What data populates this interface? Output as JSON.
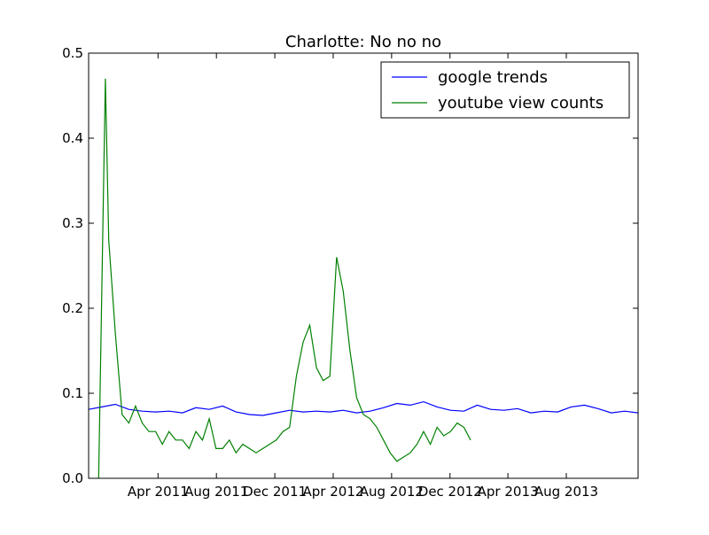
{
  "chart_data": {
    "type": "line",
    "title": "Charlotte: No no no",
    "xlabel": "",
    "ylabel": "",
    "xlim": [
      "2010-11-07",
      "2013-12-29"
    ],
    "ylim": [
      0,
      0.5
    ],
    "yticks": [
      0.0,
      0.1,
      0.2,
      0.3,
      0.4,
      0.5
    ],
    "ytick_labels": [
      "0.0",
      "0.1",
      "0.2",
      "0.3",
      "0.4",
      "0.5"
    ],
    "xticks": [
      "2011-04-01",
      "2011-08-01",
      "2011-12-01",
      "2012-04-01",
      "2012-08-01",
      "2012-12-01",
      "2013-04-01",
      "2013-08-01"
    ],
    "xtick_labels": [
      "Apr 2011",
      "Aug 2011",
      "Dec 2011",
      "Apr 2012",
      "Aug 2012",
      "Dec 2012",
      "Apr 2013",
      "Aug 2013"
    ],
    "grid": false,
    "legend_position": "top-right",
    "series": [
      {
        "name": "google trends",
        "color": "#0000ff",
        "x": [
          "2010-11-07",
          "2010-12-05",
          "2011-01-02",
          "2011-01-30",
          "2011-02-27",
          "2011-03-27",
          "2011-04-24",
          "2011-05-22",
          "2011-06-19",
          "2011-07-17",
          "2011-08-14",
          "2011-09-11",
          "2011-10-09",
          "2011-11-06",
          "2011-12-04",
          "2012-01-01",
          "2012-01-29",
          "2012-02-26",
          "2012-03-25",
          "2012-04-22",
          "2012-05-20",
          "2012-06-17",
          "2012-07-15",
          "2012-08-12",
          "2012-09-09",
          "2012-10-07",
          "2012-11-04",
          "2012-12-02",
          "2012-12-30",
          "2013-01-27",
          "2013-02-24",
          "2013-03-24",
          "2013-04-21",
          "2013-05-19",
          "2013-06-16",
          "2013-07-14",
          "2013-08-11",
          "2013-09-08",
          "2013-10-06",
          "2013-11-03",
          "2013-12-01",
          "2013-12-29"
        ],
        "y": [
          0.081,
          0.084,
          0.087,
          0.081,
          0.079,
          0.078,
          0.079,
          0.077,
          0.083,
          0.081,
          0.085,
          0.078,
          0.075,
          0.074,
          0.077,
          0.08,
          0.078,
          0.079,
          0.078,
          0.08,
          0.077,
          0.079,
          0.083,
          0.088,
          0.086,
          0.09,
          0.084,
          0.08,
          0.079,
          0.086,
          0.081,
          0.08,
          0.082,
          0.077,
          0.079,
          0.078,
          0.084,
          0.086,
          0.082,
          0.077,
          0.079,
          0.077
        ]
      },
      {
        "name": "youtube view counts",
        "color": "#008000",
        "x": [
          "2010-11-28",
          "2010-12-12",
          "2010-12-19",
          "2011-01-02",
          "2011-01-16",
          "2011-01-30",
          "2011-02-13",
          "2011-02-27",
          "2011-03-13",
          "2011-03-27",
          "2011-04-10",
          "2011-04-24",
          "2011-05-08",
          "2011-05-22",
          "2011-06-05",
          "2011-06-19",
          "2011-07-03",
          "2011-07-17",
          "2011-07-31",
          "2011-08-14",
          "2011-08-28",
          "2011-09-11",
          "2011-09-25",
          "2011-10-09",
          "2011-10-23",
          "2011-11-06",
          "2011-11-20",
          "2011-12-04",
          "2011-12-18",
          "2012-01-01",
          "2012-01-15",
          "2012-01-29",
          "2012-02-12",
          "2012-02-26",
          "2012-03-11",
          "2012-03-25",
          "2012-04-08",
          "2012-04-22",
          "2012-05-06",
          "2012-05-20",
          "2012-06-03",
          "2012-06-17",
          "2012-07-01",
          "2012-07-15",
          "2012-07-29",
          "2012-08-12",
          "2012-08-26",
          "2012-09-09",
          "2012-09-23",
          "2012-10-07",
          "2012-10-21",
          "2012-11-04",
          "2012-11-18",
          "2012-12-02",
          "2012-12-16",
          "2012-12-30",
          "2013-01-13"
        ],
        "y": [
          0.0,
          0.47,
          0.28,
          0.17,
          0.075,
          0.065,
          0.085,
          0.065,
          0.055,
          0.055,
          0.04,
          0.055,
          0.045,
          0.045,
          0.035,
          0.055,
          0.045,
          0.07,
          0.035,
          0.035,
          0.045,
          0.03,
          0.04,
          0.035,
          0.03,
          0.035,
          0.04,
          0.045,
          0.055,
          0.06,
          0.12,
          0.16,
          0.18,
          0.13,
          0.115,
          0.12,
          0.26,
          0.22,
          0.15,
          0.095,
          0.075,
          0.07,
          0.06,
          0.045,
          0.03,
          0.02,
          0.025,
          0.03,
          0.04,
          0.055,
          0.04,
          0.06,
          0.05,
          0.055,
          0.065,
          0.06,
          0.045
        ]
      }
    ]
  }
}
